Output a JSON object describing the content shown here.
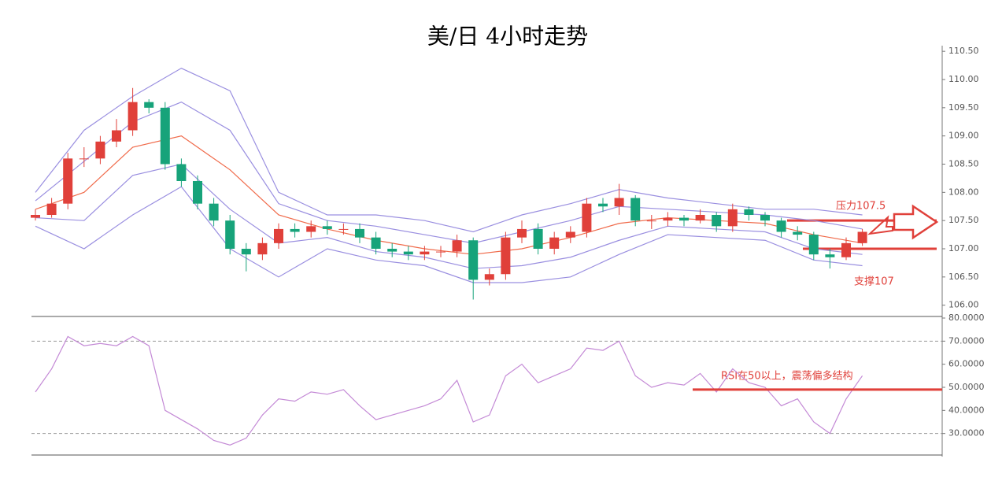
{
  "chart_data": [
    {
      "type": "candlestick",
      "title": "美/日 4小时走势",
      "open": [
        107.55,
        107.6,
        107.8,
        108.6,
        108.6,
        108.9,
        109.1,
        109.6,
        109.5,
        108.5,
        108.2,
        107.8,
        107.5,
        107.0,
        106.9,
        107.1,
        107.35,
        107.3,
        107.4,
        107.35,
        107.35,
        107.2,
        107.0,
        106.95,
        106.9,
        106.95,
        106.95,
        107.15,
        106.45,
        106.55,
        107.2,
        107.35,
        107.0,
        107.2,
        107.3,
        107.8,
        107.75,
        107.9,
        107.5,
        107.5,
        107.55,
        107.5,
        107.6,
        107.4,
        107.7,
        107.6,
        107.5,
        107.3,
        107.25,
        106.9,
        106.85,
        107.1
      ],
      "high": [
        107.7,
        107.9,
        108.7,
        108.8,
        109.0,
        109.3,
        109.85,
        109.65,
        109.6,
        108.6,
        108.3,
        107.9,
        107.6,
        107.1,
        107.2,
        107.45,
        107.45,
        107.5,
        107.5,
        107.45,
        107.45,
        107.3,
        107.1,
        107.05,
        107.05,
        107.05,
        107.25,
        107.2,
        106.65,
        107.3,
        107.5,
        107.45,
        107.3,
        107.4,
        107.9,
        107.9,
        108.15,
        107.95,
        107.6,
        107.65,
        107.6,
        107.7,
        107.65,
        107.8,
        107.75,
        107.65,
        107.55,
        107.4,
        107.3,
        107.0,
        107.2,
        107.35
      ],
      "low": [
        107.5,
        107.55,
        107.7,
        108.45,
        108.5,
        108.8,
        109.0,
        109.4,
        108.4,
        108.1,
        107.7,
        107.4,
        106.9,
        106.6,
        106.8,
        107.0,
        107.2,
        107.2,
        107.25,
        107.25,
        107.1,
        106.9,
        106.85,
        106.8,
        106.8,
        106.85,
        106.85,
        106.1,
        106.35,
        106.45,
        107.1,
        106.9,
        106.9,
        107.1,
        107.2,
        107.65,
        107.6,
        107.4,
        107.35,
        107.4,
        107.4,
        107.45,
        107.3,
        107.3,
        107.5,
        107.4,
        107.2,
        107.15,
        106.8,
        106.65,
        106.8,
        107.05
      ],
      "close": [
        107.6,
        107.8,
        108.6,
        108.6,
        108.9,
        109.1,
        109.6,
        109.5,
        108.5,
        108.2,
        107.8,
        107.5,
        107.0,
        106.9,
        107.1,
        107.35,
        107.3,
        107.4,
        107.35,
        107.35,
        107.2,
        107.0,
        106.95,
        106.9,
        106.95,
        106.95,
        107.15,
        106.45,
        106.55,
        107.2,
        107.35,
        107.0,
        107.2,
        107.3,
        107.8,
        107.75,
        107.9,
        107.5,
        107.5,
        107.55,
        107.5,
        107.6,
        107.4,
        107.7,
        107.6,
        107.5,
        107.3,
        107.25,
        106.9,
        106.85,
        107.1,
        107.3
      ],
      "up_color": "#e0403a",
      "down_color": "#17a37a",
      "lines": [
        {
          "color": "#9a8fe0",
          "x": [
            0,
            3,
            6,
            9,
            12,
            15,
            18,
            21,
            24,
            27,
            30,
            33,
            36,
            39,
            42,
            45,
            48,
            51
          ],
          "values": [
            108.0,
            109.1,
            109.7,
            110.2,
            109.8,
            108.0,
            107.6,
            107.6,
            107.5,
            107.3,
            107.6,
            107.8,
            108.05,
            107.9,
            107.8,
            107.7,
            107.7,
            107.6
          ]
        },
        {
          "color": "#9a8fe0",
          "x": [
            0,
            3,
            6,
            9,
            12,
            15,
            18,
            21,
            24,
            27,
            30,
            33,
            36,
            39,
            42,
            45,
            48,
            51
          ],
          "values": [
            107.85,
            108.55,
            109.25,
            109.6,
            109.1,
            107.8,
            107.5,
            107.4,
            107.25,
            107.1,
            107.3,
            107.5,
            107.75,
            107.7,
            107.65,
            107.6,
            107.5,
            107.35
          ]
        },
        {
          "color": "#f06a4a",
          "x": [
            0,
            3,
            6,
            9,
            12,
            15,
            18,
            21,
            24,
            27,
            30,
            33,
            36,
            39,
            42,
            45,
            48,
            51
          ],
          "values": [
            107.7,
            108.0,
            108.8,
            109.0,
            108.4,
            107.6,
            107.35,
            107.15,
            107.0,
            106.9,
            107.0,
            107.2,
            107.45,
            107.55,
            107.5,
            107.45,
            107.25,
            107.1
          ]
        },
        {
          "color": "#9a8fe0",
          "x": [
            0,
            3,
            6,
            9,
            12,
            15,
            18,
            21,
            24,
            27,
            30,
            33,
            36,
            39,
            42,
            45,
            48,
            51
          ],
          "values": [
            107.55,
            107.5,
            108.3,
            108.5,
            107.7,
            107.1,
            107.2,
            106.95,
            106.85,
            106.65,
            106.7,
            106.85,
            107.15,
            107.4,
            107.35,
            107.3,
            107.0,
            106.9
          ]
        },
        {
          "color": "#9a8fe0",
          "x": [
            0,
            3,
            6,
            9,
            12,
            15,
            18,
            21,
            24,
            27,
            30,
            33,
            36,
            39,
            42,
            45,
            48,
            51
          ],
          "values": [
            107.4,
            107.0,
            107.6,
            108.1,
            107.0,
            106.5,
            107.0,
            106.8,
            106.7,
            106.4,
            106.4,
            106.5,
            106.9,
            107.25,
            107.2,
            107.15,
            106.8,
            106.7
          ]
        }
      ],
      "ylim": [
        105.8,
        110.6
      ],
      "yticks": [
        {
          "value": 106,
          "label": "106.00"
        },
        {
          "value": 106.5,
          "label": "106.50"
        },
        {
          "value": 107,
          "label": "107.00"
        },
        {
          "value": 107.5,
          "label": "107.50"
        },
        {
          "value": 108,
          "label": "108.00"
        },
        {
          "value": 108.5,
          "label": "108.50"
        },
        {
          "value": 109,
          "label": "109.00"
        },
        {
          "value": 109.5,
          "label": "109.50"
        },
        {
          "value": 110,
          "label": "110.00"
        },
        {
          "value": 110.5,
          "label": "110.50"
        }
      ],
      "levels": [
        107.5,
        107
      ],
      "annotations": [
        "压力107.5",
        "支撑107"
      ]
    },
    {
      "type": "line",
      "color": "#c48ad6",
      "values": [
        48,
        58,
        72,
        68,
        69,
        68,
        72,
        68,
        40,
        36,
        32,
        27,
        25,
        28,
        38,
        45,
        44,
        48,
        47,
        49,
        42,
        36,
        38,
        40,
        42,
        45,
        53,
        35,
        38,
        55,
        60,
        52,
        55,
        58,
        67,
        66,
        70,
        55,
        50,
        52,
        51,
        56,
        48,
        58,
        52,
        50,
        42,
        45,
        35,
        30,
        45,
        55
      ],
      "ylim": [
        20,
        80
      ],
      "yticks": [
        {
          "value": 30,
          "label": "30.0000"
        },
        {
          "value": 40,
          "label": "40.0000"
        },
        {
          "value": 50,
          "label": "50.0000"
        },
        {
          "value": 60,
          "label": "60.0000"
        },
        {
          "value": 70,
          "label": "70.0000"
        },
        {
          "value": 80,
          "label": "80.0000"
        }
      ],
      "dashed_levels": [
        30,
        70
      ],
      "level": 49,
      "annotation": "RSI在50以上，震荡偏多结构"
    }
  ]
}
